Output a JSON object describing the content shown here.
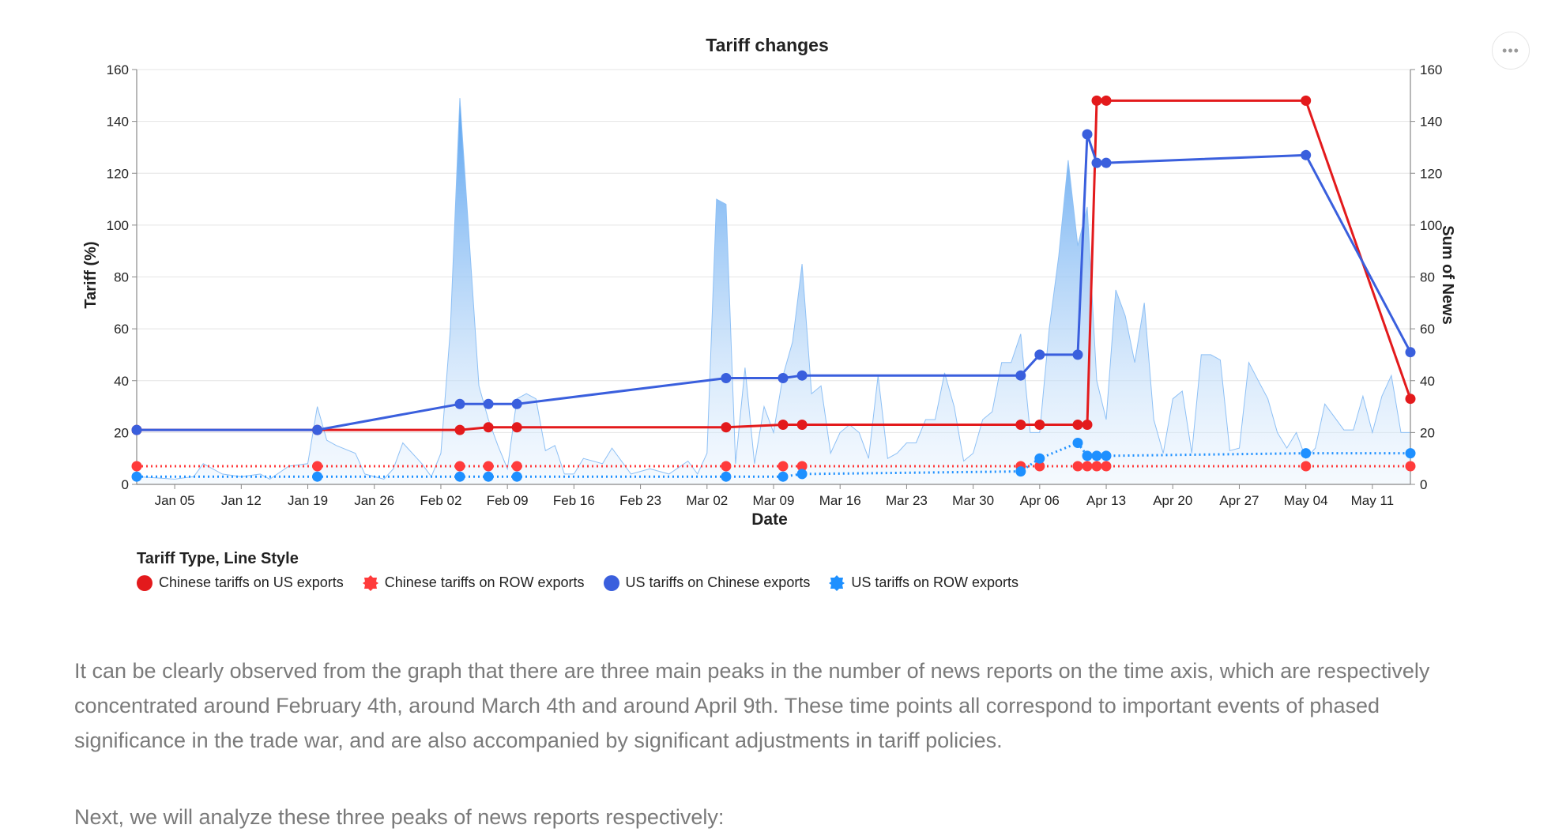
{
  "menu": {
    "icon": "more-horizontal-icon",
    "label": "•••"
  },
  "chart_data": {
    "type": "line",
    "title": "Tariff changes",
    "xlabel": "Date",
    "ylabel_left": "Tariff (%)",
    "ylabel_right": "Sum of News",
    "ylim_left": [
      0,
      160
    ],
    "ylim_right": [
      0,
      160
    ],
    "yticks": [
      0,
      20,
      40,
      60,
      80,
      100,
      120,
      140,
      160
    ],
    "xlim": [
      "2025-01-01",
      "2025-05-15"
    ],
    "xticks": [
      {
        "date": "2025-01-05",
        "label": "Jan 05"
      },
      {
        "date": "2025-01-12",
        "label": "Jan 12"
      },
      {
        "date": "2025-01-19",
        "label": "Jan 19"
      },
      {
        "date": "2025-01-26",
        "label": "Jan 26"
      },
      {
        "date": "2025-02-02",
        "label": "Feb 02"
      },
      {
        "date": "2025-02-09",
        "label": "Feb 09"
      },
      {
        "date": "2025-02-16",
        "label": "Feb 16"
      },
      {
        "date": "2025-02-23",
        "label": "Feb 23"
      },
      {
        "date": "2025-03-02",
        "label": "Mar 02"
      },
      {
        "date": "2025-03-09",
        "label": "Mar 09"
      },
      {
        "date": "2025-03-16",
        "label": "Mar 16"
      },
      {
        "date": "2025-03-23",
        "label": "Mar 23"
      },
      {
        "date": "2025-03-30",
        "label": "Mar 30"
      },
      {
        "date": "2025-04-06",
        "label": "Apr 06"
      },
      {
        "date": "2025-04-13",
        "label": "Apr 13"
      },
      {
        "date": "2025-04-20",
        "label": "Apr 20"
      },
      {
        "date": "2025-04-27",
        "label": "Apr 27"
      },
      {
        "date": "2025-05-04",
        "label": "May 04"
      },
      {
        "date": "2025-05-11",
        "label": "May 11"
      }
    ],
    "grid": true,
    "legend": {
      "title": "Tariff Type, Line Style",
      "placement": "bottom-left",
      "items": [
        {
          "label": "Chinese tariffs on US exports",
          "color": "#e31a1c",
          "marker": "circle"
        },
        {
          "label": "Chinese tariffs on ROW exports",
          "color": "#ff3b3b",
          "marker": "jagged"
        },
        {
          "label": "US tariffs on Chinese exports",
          "color": "#3a5fdd",
          "marker": "circle"
        },
        {
          "label": "US tariffs on ROW exports",
          "color": "#1e90ff",
          "marker": "jagged"
        }
      ]
    },
    "series": [
      {
        "name": "Chinese tariffs on US exports",
        "axis": "left",
        "style": "solid",
        "color": "#e31a1c",
        "points": [
          [
            "2025-01-01",
            21
          ],
          [
            "2025-01-20",
            21
          ],
          [
            "2025-02-04",
            21
          ],
          [
            "2025-02-07",
            22
          ],
          [
            "2025-02-10",
            22
          ],
          [
            "2025-03-04",
            22
          ],
          [
            "2025-03-10",
            23
          ],
          [
            "2025-03-12",
            23
          ],
          [
            "2025-04-04",
            23
          ],
          [
            "2025-04-06",
            23
          ],
          [
            "2025-04-10",
            23
          ],
          [
            "2025-04-11",
            23
          ],
          [
            "2025-04-12",
            148
          ],
          [
            "2025-04-13",
            148
          ],
          [
            "2025-05-04",
            148
          ],
          [
            "2025-05-15",
            33
          ]
        ]
      },
      {
        "name": "Chinese tariffs on ROW exports",
        "axis": "left",
        "style": "dotted",
        "color": "#ff3b3b",
        "points": [
          [
            "2025-01-01",
            7
          ],
          [
            "2025-01-20",
            7
          ],
          [
            "2025-02-04",
            7
          ],
          [
            "2025-02-07",
            7
          ],
          [
            "2025-02-10",
            7
          ],
          [
            "2025-03-04",
            7
          ],
          [
            "2025-03-10",
            7
          ],
          [
            "2025-03-12",
            7
          ],
          [
            "2025-04-04",
            7
          ],
          [
            "2025-04-06",
            7
          ],
          [
            "2025-04-10",
            7
          ],
          [
            "2025-04-11",
            7
          ],
          [
            "2025-04-12",
            7
          ],
          [
            "2025-04-13",
            7
          ],
          [
            "2025-05-04",
            7
          ],
          [
            "2025-05-15",
            7
          ]
        ]
      },
      {
        "name": "US tariffs on Chinese exports",
        "axis": "left",
        "style": "solid",
        "color": "#3a5fdd",
        "points": [
          [
            "2025-01-01",
            21
          ],
          [
            "2025-01-20",
            21
          ],
          [
            "2025-02-04",
            31
          ],
          [
            "2025-02-07",
            31
          ],
          [
            "2025-02-10",
            31
          ],
          [
            "2025-03-04",
            41
          ],
          [
            "2025-03-10",
            41
          ],
          [
            "2025-03-12",
            42
          ],
          [
            "2025-04-04",
            42
          ],
          [
            "2025-04-06",
            50
          ],
          [
            "2025-04-10",
            50
          ],
          [
            "2025-04-11",
            135
          ],
          [
            "2025-04-12",
            124
          ],
          [
            "2025-04-13",
            124
          ],
          [
            "2025-05-04",
            127
          ],
          [
            "2025-05-15",
            51
          ]
        ]
      },
      {
        "name": "US tariffs on ROW exports",
        "axis": "left",
        "style": "dotted",
        "color": "#1e90ff",
        "points": [
          [
            "2025-01-01",
            3
          ],
          [
            "2025-01-20",
            3
          ],
          [
            "2025-02-04",
            3
          ],
          [
            "2025-02-07",
            3
          ],
          [
            "2025-02-10",
            3
          ],
          [
            "2025-03-04",
            3
          ],
          [
            "2025-03-10",
            3
          ],
          [
            "2025-03-12",
            4
          ],
          [
            "2025-04-04",
            5
          ],
          [
            "2025-04-06",
            10
          ],
          [
            "2025-04-10",
            16
          ],
          [
            "2025-04-11",
            11
          ],
          [
            "2025-04-12",
            11
          ],
          [
            "2025-04-13",
            11
          ],
          [
            "2025-05-04",
            12
          ],
          [
            "2025-05-15",
            12
          ]
        ]
      },
      {
        "name": "Sum of News",
        "axis": "right",
        "style": "area",
        "color": "#6aaef2",
        "points": [
          [
            "2025-01-01",
            3
          ],
          [
            "2025-01-05",
            2
          ],
          [
            "2025-01-07",
            3
          ],
          [
            "2025-01-08",
            8
          ],
          [
            "2025-01-10",
            4
          ],
          [
            "2025-01-12",
            3
          ],
          [
            "2025-01-14",
            4
          ],
          [
            "2025-01-15",
            2
          ],
          [
            "2025-01-17",
            7
          ],
          [
            "2025-01-19",
            8
          ],
          [
            "2025-01-20",
            30
          ],
          [
            "2025-01-21",
            17
          ],
          [
            "2025-01-22",
            15
          ],
          [
            "2025-01-24",
            12
          ],
          [
            "2025-01-25",
            4
          ],
          [
            "2025-01-27",
            2
          ],
          [
            "2025-01-28",
            6
          ],
          [
            "2025-01-29",
            16
          ],
          [
            "2025-01-31",
            8
          ],
          [
            "2025-02-01",
            3
          ],
          [
            "2025-02-02",
            12
          ],
          [
            "2025-02-03",
            60
          ],
          [
            "2025-02-04",
            149
          ],
          [
            "2025-02-06",
            38
          ],
          [
            "2025-02-07",
            25
          ],
          [
            "2025-02-08",
            15
          ],
          [
            "2025-02-09",
            6
          ],
          [
            "2025-02-10",
            33
          ],
          [
            "2025-02-11",
            35
          ],
          [
            "2025-02-12",
            33
          ],
          [
            "2025-02-13",
            13
          ],
          [
            "2025-02-14",
            15
          ],
          [
            "2025-02-15",
            4
          ],
          [
            "2025-02-16",
            4
          ],
          [
            "2025-02-17",
            10
          ],
          [
            "2025-02-19",
            8
          ],
          [
            "2025-02-20",
            14
          ],
          [
            "2025-02-22",
            4
          ],
          [
            "2025-02-24",
            6
          ],
          [
            "2025-02-26",
            4
          ],
          [
            "2025-02-28",
            9
          ],
          [
            "2025-03-01",
            4
          ],
          [
            "2025-03-02",
            12
          ],
          [
            "2025-03-03",
            110
          ],
          [
            "2025-03-04",
            108
          ],
          [
            "2025-03-05",
            8
          ],
          [
            "2025-03-06",
            45
          ],
          [
            "2025-03-07",
            8
          ],
          [
            "2025-03-08",
            30
          ],
          [
            "2025-03-09",
            20
          ],
          [
            "2025-03-10",
            42
          ],
          [
            "2025-03-11",
            55
          ],
          [
            "2025-03-12",
            85
          ],
          [
            "2025-03-13",
            35
          ],
          [
            "2025-03-14",
            38
          ],
          [
            "2025-03-15",
            12
          ],
          [
            "2025-03-16",
            20
          ],
          [
            "2025-03-17",
            23
          ],
          [
            "2025-03-18",
            20
          ],
          [
            "2025-03-19",
            10
          ],
          [
            "2025-03-20",
            42
          ],
          [
            "2025-03-21",
            10
          ],
          [
            "2025-03-22",
            12
          ],
          [
            "2025-03-23",
            16
          ],
          [
            "2025-03-24",
            16
          ],
          [
            "2025-03-25",
            25
          ],
          [
            "2025-03-26",
            25
          ],
          [
            "2025-03-27",
            43
          ],
          [
            "2025-03-28",
            30
          ],
          [
            "2025-03-29",
            9
          ],
          [
            "2025-03-30",
            12
          ],
          [
            "2025-03-31",
            25
          ],
          [
            "2025-04-01",
            28
          ],
          [
            "2025-04-02",
            47
          ],
          [
            "2025-04-03",
            47
          ],
          [
            "2025-04-04",
            58
          ],
          [
            "2025-04-05",
            20
          ],
          [
            "2025-04-06",
            20
          ],
          [
            "2025-04-07",
            60
          ],
          [
            "2025-04-08",
            88
          ],
          [
            "2025-04-09",
            125
          ],
          [
            "2025-04-10",
            92
          ],
          [
            "2025-04-11",
            107
          ],
          [
            "2025-04-12",
            40
          ],
          [
            "2025-04-13",
            25
          ],
          [
            "2025-04-14",
            75
          ],
          [
            "2025-04-15",
            65
          ],
          [
            "2025-04-16",
            47
          ],
          [
            "2025-04-17",
            70
          ],
          [
            "2025-04-18",
            25
          ],
          [
            "2025-04-19",
            12
          ],
          [
            "2025-04-20",
            33
          ],
          [
            "2025-04-21",
            36
          ],
          [
            "2025-04-22",
            12
          ],
          [
            "2025-04-23",
            50
          ],
          [
            "2025-04-24",
            50
          ],
          [
            "2025-04-25",
            48
          ],
          [
            "2025-04-26",
            13
          ],
          [
            "2025-04-27",
            14
          ],
          [
            "2025-04-28",
            47
          ],
          [
            "2025-04-29",
            40
          ],
          [
            "2025-04-30",
            33
          ],
          [
            "2025-05-01",
            20
          ],
          [
            "2025-05-02",
            14
          ],
          [
            "2025-05-03",
            20
          ],
          [
            "2025-05-04",
            10
          ],
          [
            "2025-05-05",
            14
          ],
          [
            "2025-05-06",
            31
          ],
          [
            "2025-05-07",
            26
          ],
          [
            "2025-05-08",
            21
          ],
          [
            "2025-05-09",
            21
          ],
          [
            "2025-05-10",
            34
          ],
          [
            "2025-05-11",
            20
          ],
          [
            "2025-05-12",
            34
          ],
          [
            "2025-05-13",
            42
          ],
          [
            "2025-05-14",
            20
          ],
          [
            "2025-05-15",
            20
          ]
        ]
      }
    ]
  },
  "article": {
    "paragraph1": "It can be clearly observed from the graph that there are three main peaks in the number of news reports on the time axis, which are respectively concentrated around February 4th, around March 4th and around April 9th. These time points all correspond to important events of phased significance in the trade war, and are also accompanied by significant adjustments in tariff policies.",
    "paragraph2": "Next, we will analyze these three peaks of news reports respectively:"
  }
}
